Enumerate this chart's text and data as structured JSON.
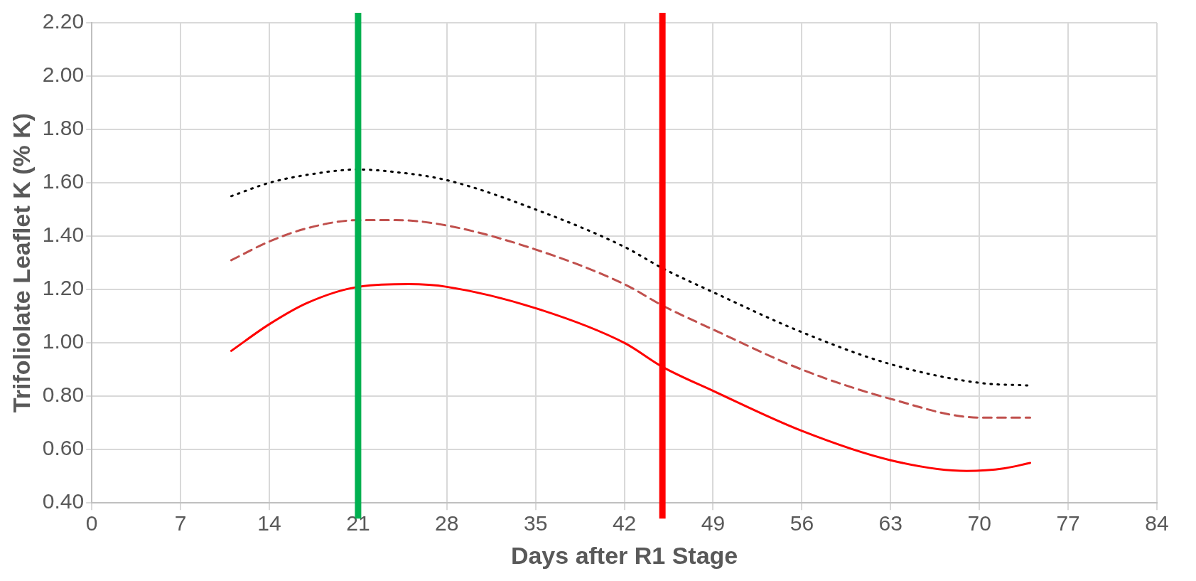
{
  "chart_data": {
    "type": "line",
    "xlabel": "Days after R1 Stage",
    "ylabel": "Trifoliolate Leaflet K (% K)",
    "xlim": [
      0,
      84
    ],
    "xticks": [
      0,
      7,
      14,
      21,
      28,
      35,
      42,
      49,
      56,
      63,
      70,
      77,
      84
    ],
    "ylim": [
      0.4,
      2.2
    ],
    "yticks": [
      {
        "value": 0.4,
        "label": "0.40"
      },
      {
        "value": 0.6,
        "label": "0.60"
      },
      {
        "value": 0.8,
        "label": "0.80"
      },
      {
        "value": 1.0,
        "label": "1.00"
      },
      {
        "value": 1.2,
        "label": "1.20"
      },
      {
        "value": 1.4,
        "label": "1.40"
      },
      {
        "value": 1.6,
        "label": "1.60"
      },
      {
        "value": 1.8,
        "label": "1.80"
      },
      {
        "value": 2.0,
        "label": "2.00"
      },
      {
        "value": 2.2,
        "label": "2.20"
      }
    ],
    "grid": true,
    "marker": "none",
    "series": [
      {
        "color": "#000000",
        "line_style": "dotted",
        "x": [
          11,
          14,
          17,
          21,
          24,
          28,
          35,
          42,
          45,
          49,
          56,
          63,
          70,
          74
        ],
        "values": [
          1.55,
          1.6,
          1.63,
          1.65,
          1.64,
          1.61,
          1.5,
          1.36,
          1.28,
          1.19,
          1.04,
          0.92,
          0.85,
          0.84
        ]
      },
      {
        "color": "#c0504d",
        "line_style": "dashed",
        "x": [
          11,
          14,
          17,
          21,
          24,
          28,
          35,
          42,
          45,
          49,
          56,
          63,
          70,
          74
        ],
        "values": [
          1.31,
          1.38,
          1.43,
          1.46,
          1.46,
          1.44,
          1.35,
          1.22,
          1.14,
          1.05,
          0.9,
          0.79,
          0.72,
          0.72
        ]
      },
      {
        "color": "#ff0000",
        "line_style": "solid",
        "x": [
          11,
          14,
          17,
          21,
          25,
          28,
          35,
          42,
          45,
          49,
          56,
          63,
          69,
          72,
          74
        ],
        "values": [
          0.97,
          1.07,
          1.15,
          1.21,
          1.22,
          1.21,
          1.13,
          1.0,
          0.91,
          0.82,
          0.67,
          0.56,
          0.52,
          0.53,
          0.55
        ]
      }
    ],
    "ref_lines": [
      {
        "axis": "x",
        "value": 21,
        "color": "#00b050"
      },
      {
        "axis": "x",
        "value": 45,
        "color": "#ff0000"
      }
    ]
  }
}
